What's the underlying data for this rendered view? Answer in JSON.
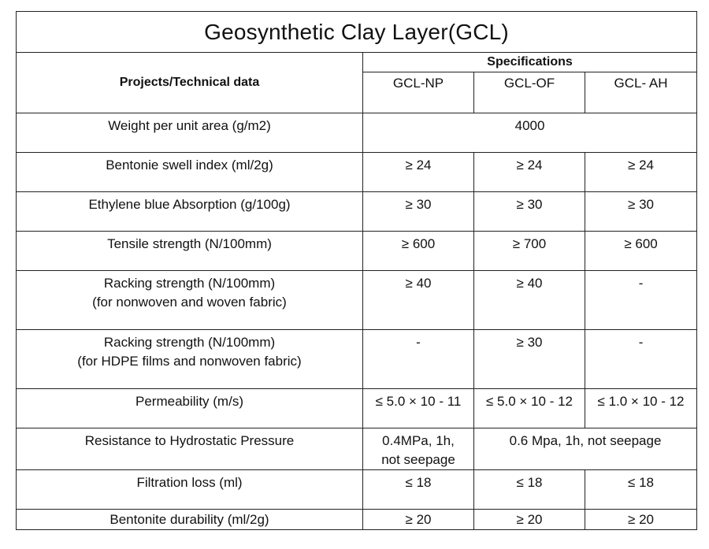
{
  "title": "Geosynthetic Clay Layer(GCL)",
  "header": {
    "projects_label": "Projects/Technical data",
    "specifications_label": "Specifications",
    "columns": [
      "GCL-NP",
      "GCL-OF",
      "GCL- AH"
    ]
  },
  "rows": {
    "weight": {
      "label": "Weight per unit area (g/m2)",
      "value": "4000"
    },
    "swell": {
      "label": "Bentonie swell index (ml/2g)",
      "np": "≥ 24",
      "of": "≥ 24",
      "ah": "≥ 24"
    },
    "ethylene": {
      "label": "Ethylene blue Absorption (g/100g)",
      "np": "≥ 30",
      "of": "≥ 30",
      "ah": "≥ 30"
    },
    "tensile": {
      "label": "Tensile strength (N/100mm)",
      "np": "≥ 600",
      "of": "≥ 700",
      "ah": "≥ 600"
    },
    "racking_nonwoven": {
      "label_line1": "Racking strength (N/100mm)",
      "label_line2": "(for nonwoven and woven fabric)",
      "np": "≥ 40",
      "of": "≥ 40",
      "ah": "-"
    },
    "racking_hdpe": {
      "label_line1": "Racking strength (N/100mm)",
      "label_line2": "(for HDPE films and nonwoven fabric)",
      "np": "-",
      "of": "≥ 30",
      "ah": "-"
    },
    "permeability": {
      "label": "Permeability (m/s)",
      "np": "≤ 5.0 × 10 - 11",
      "of": "≤ 5.0 × 10 - 12",
      "ah": "≤ 1.0 × 10 - 12"
    },
    "hydrostatic": {
      "label": "Resistance to Hydrostatic Pressure",
      "np_line1": "0.4MPa, 1h,",
      "np_line2": "not seepage",
      "of_ah": "0.6 Mpa, 1h, not seepage"
    },
    "filtration": {
      "label": "Filtration loss (ml)",
      "np": "≤ 18",
      "of": "≤ 18",
      "ah": "≤ 18"
    },
    "durability": {
      "label": "Bentonite durability (ml/2g)",
      "np": "≥ 20",
      "of": "≥ 20",
      "ah": "≥ 20"
    }
  }
}
